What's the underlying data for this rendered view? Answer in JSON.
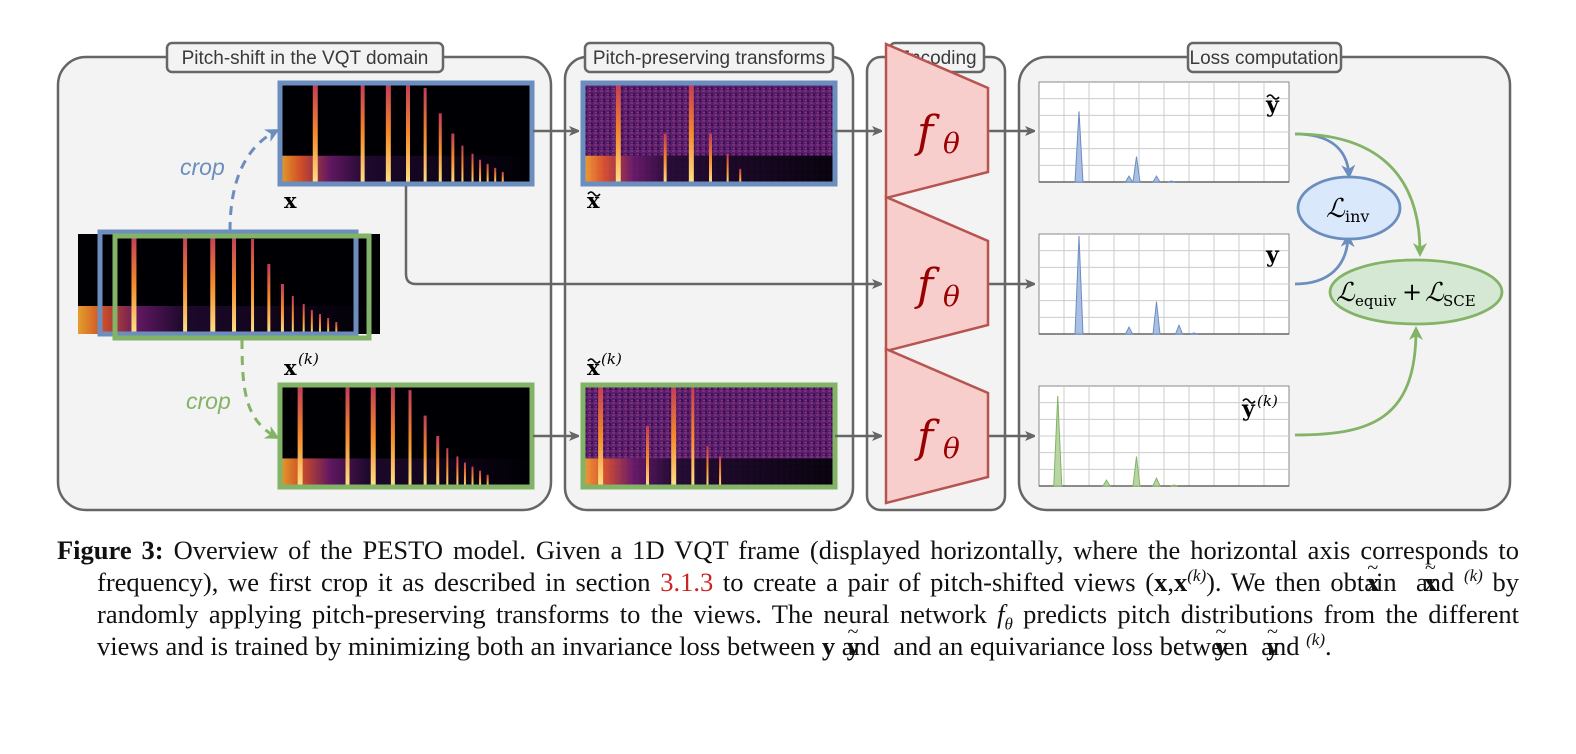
{
  "panels": {
    "pitch_shift": "Pitch-shift in the VQT domain",
    "transforms": "Pitch-preserving transforms",
    "encoding": "Encoding",
    "loss": "Loss computation"
  },
  "labels": {
    "crop": "crop",
    "x": "x",
    "xk": "x",
    "k": "(k)",
    "x_tilde": "x",
    "xk_tilde": "x",
    "f": "f",
    "theta": "θ",
    "y_tilde": "y",
    "y": "y",
    "yk_tilde": "y",
    "L": "ℒ",
    "inv": "inv",
    "equiv": "equiv",
    "plus": "+",
    "sce": "SCE"
  },
  "colors": {
    "blue": "#6c8ebf",
    "green": "#82b366",
    "encoder_fill": "#f8cecc",
    "encoder_stroke": "#b85450",
    "inv_fill": "#dae8fc",
    "equiv_fill": "#d5e8d4",
    "arrow": "#666666"
  },
  "distributions": {
    "y_tilde": {
      "peaks": [
        [
          0.16,
          0.72
        ],
        [
          0.36,
          0.06
        ],
        [
          0.39,
          0.26
        ],
        [
          0.47,
          0.06
        ],
        [
          0.53,
          0.01
        ]
      ]
    },
    "y": {
      "peaks": [
        [
          0.16,
          1.0
        ],
        [
          0.36,
          0.07
        ],
        [
          0.47,
          0.33
        ],
        [
          0.56,
          0.09
        ],
        [
          0.62,
          0.01
        ]
      ]
    },
    "yk_tilde": {
      "peaks": [
        [
          0.075,
          0.92
        ],
        [
          0.27,
          0.06
        ],
        [
          0.39,
          0.3
        ],
        [
          0.47,
          0.08
        ],
        [
          0.54,
          0.01
        ]
      ]
    }
  },
  "caption": {
    "fig_label": "Figure 3:",
    "t1": " Overview of the PESTO model. Given a 1D VQT frame (displayed horizontally, where the horizontal axis corresponds to frequency), we first crop it as described in section ",
    "ref": "3.1.3",
    "t2": " to create a pair of pitch-shifted views (",
    "x": "x",
    "comma": ",",
    "x2": "x",
    "k": "(k)",
    "t3": "). We then obtain ",
    "t4": " and ",
    "t5": " by randomly applying pitch-preserving transforms to the views. The neural network ",
    "f": "f",
    "theta": "θ",
    "t6": " predicts pitch distributions from the different views and is trained by minimizing both an invariance loss between ",
    "y": "y",
    "t7": " and ",
    "t8": " and an equivariance loss between ",
    "t9": " and ",
    "t10": "."
  }
}
